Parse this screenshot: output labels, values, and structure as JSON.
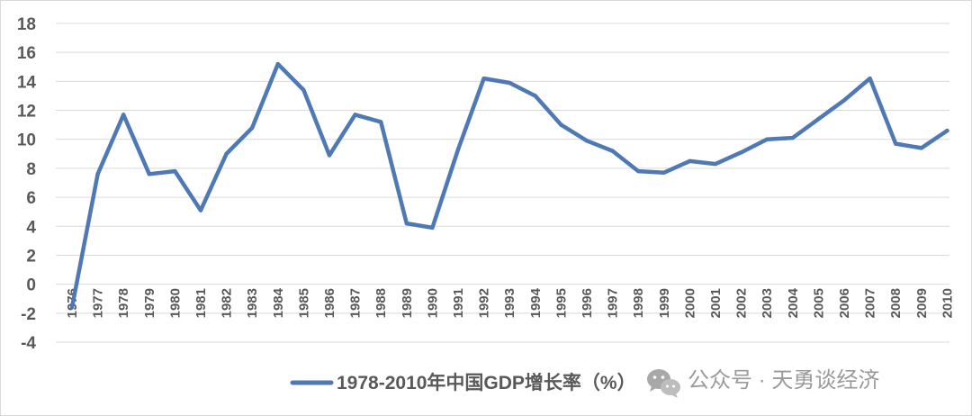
{
  "chart_data": {
    "type": "line",
    "x": [
      "1976",
      "1977",
      "1978",
      "1979",
      "1980",
      "1981",
      "1982",
      "1983",
      "1984",
      "1985",
      "1986",
      "1987",
      "1988",
      "1989",
      "1990",
      "1991",
      "1992",
      "1993",
      "1994",
      "1995",
      "1996",
      "1997",
      "1998",
      "1999",
      "2000",
      "2001",
      "2002",
      "2003",
      "2004",
      "2005",
      "2006",
      "2007",
      "2008",
      "2009",
      "2010"
    ],
    "series": [
      {
        "name": "1978-2010年中国GDP增长率（%）",
        "color": "#4e79b5",
        "values": [
          -1.6,
          7.6,
          11.7,
          7.6,
          7.8,
          5.1,
          9.0,
          10.8,
          15.2,
          13.4,
          8.9,
          11.7,
          11.2,
          4.2,
          3.9,
          9.3,
          14.2,
          13.9,
          13.0,
          11.0,
          9.9,
          9.2,
          7.8,
          7.7,
          8.5,
          8.3,
          9.1,
          10.0,
          10.1,
          11.4,
          12.7,
          14.2,
          9.7,
          9.4,
          10.6
        ]
      }
    ],
    "ylim": [
      -4,
      18
    ],
    "yticks": [
      -4,
      -2,
      0,
      2,
      4,
      6,
      8,
      10,
      12,
      14,
      16,
      18
    ],
    "grid": true,
    "legend": "bottom"
  },
  "watermark": {
    "icon": "wechat-icon",
    "text": "公众号 · 天勇谈经济"
  }
}
